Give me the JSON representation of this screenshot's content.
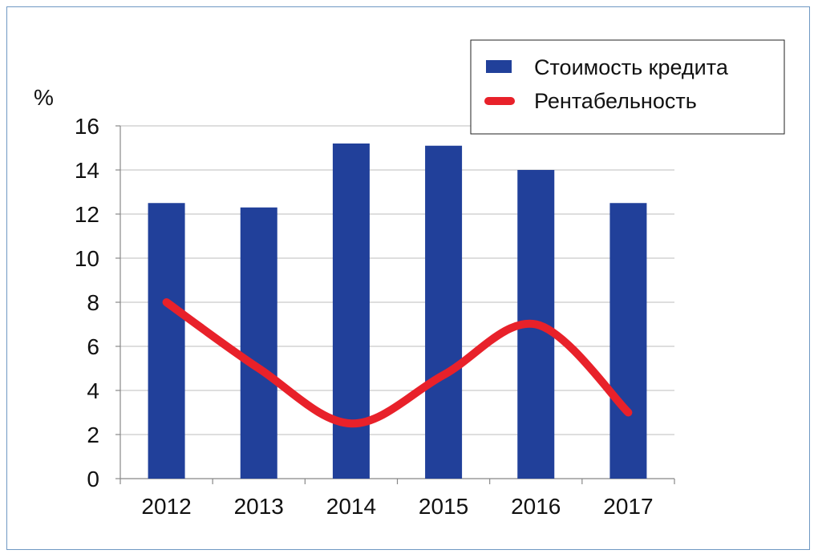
{
  "chart_data": {
    "type": "bar",
    "categories": [
      "2012",
      "2013",
      "2014",
      "2015",
      "2016",
      "2017"
    ],
    "series": [
      {
        "name": "Стоимость кредита",
        "type": "bar",
        "color": "#21409a",
        "values": [
          12.5,
          12.3,
          15.2,
          15.1,
          14.0,
          12.5
        ]
      },
      {
        "name": "Рентабельность",
        "type": "line",
        "smooth": true,
        "color": "#e8212a",
        "values": [
          8.0,
          5.0,
          2.5,
          4.7,
          7.0,
          3.0
        ]
      }
    ],
    "ylabel": "%",
    "ylim": [
      0,
      16
    ],
    "yticks": [
      0,
      2,
      4,
      6,
      8,
      10,
      12,
      14,
      16
    ],
    "grid": true,
    "legend": "top-right"
  }
}
